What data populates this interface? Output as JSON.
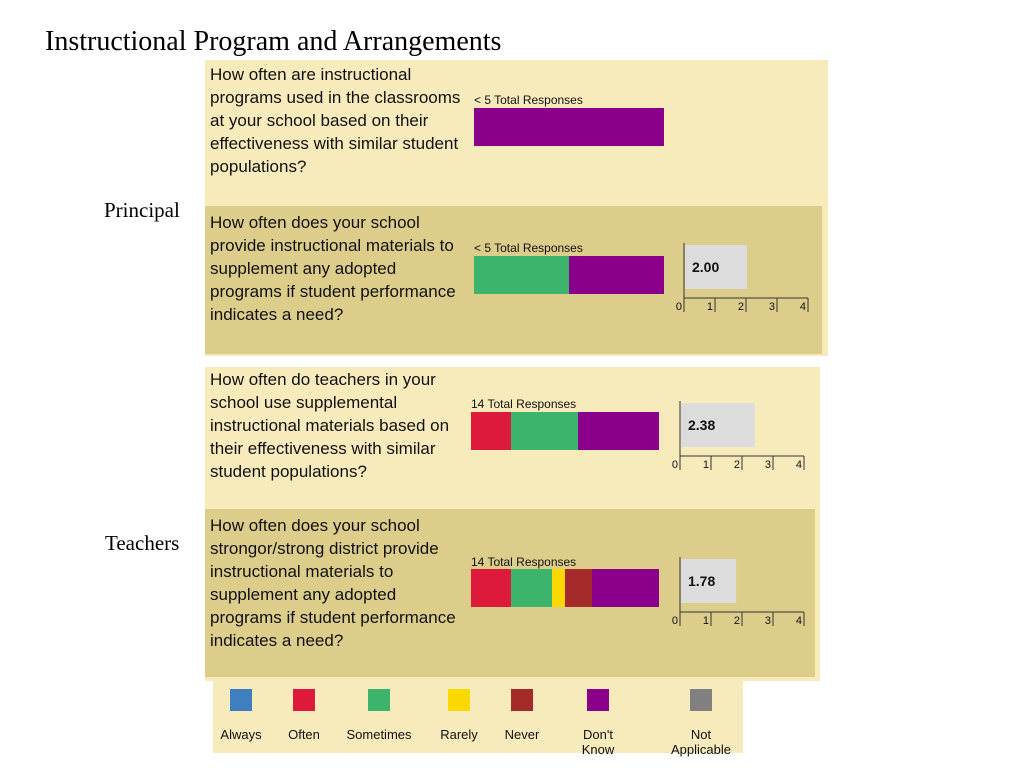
{
  "title": "Instructional Program and Arrangements",
  "colors": {
    "Always": "#3f7fbf",
    "Often": "#dd1a3c",
    "Sometimes": "#3db46b",
    "Rarely": "#fad800",
    "Never": "#a52a2a",
    "Don't Know": "#8b008b",
    "Not Applicable": "#808080",
    "panel_light": "#f7eabb",
    "panel_dark": "#dccd8a"
  },
  "groups": [
    {
      "label": "Principal"
    },
    {
      "label": "Teachers"
    }
  ],
  "chart_data": [
    {
      "type": "bar",
      "group": "Principal",
      "question": "How often are instructional programs used in the classrooms at your school based on their effectiveness with similar student populations?",
      "responses_label": "< 5 Total Responses",
      "series": [
        {
          "name": "Don't Know",
          "values": [
            1.0
          ]
        }
      ],
      "mean": null
    },
    {
      "type": "bar",
      "group": "Principal",
      "question": "How often does your school provide instructional materials to supplement any adopted programs if student performance indicates a need?",
      "responses_label": "< 5 Total Responses",
      "series": [
        {
          "name": "Sometimes",
          "values": [
            0.5
          ]
        },
        {
          "name": "Don't Know",
          "values": [
            0.5
          ]
        }
      ],
      "mean": "2.00",
      "mean_value": 2.0,
      "xlim": [
        0,
        4
      ],
      "ticks": [
        "0",
        "1",
        "2",
        "3",
        "4"
      ]
    },
    {
      "type": "bar",
      "group": "Teachers",
      "question": "How often do teachers in your school use supplemental instructional materials based on their effectiveness with similar student populations?",
      "responses_label": "14 Total Responses",
      "series": [
        {
          "name": "Often",
          "values": [
            0.214
          ]
        },
        {
          "name": "Sometimes",
          "values": [
            0.357
          ]
        },
        {
          "name": "Don't Know",
          "values": [
            0.429
          ]
        }
      ],
      "mean": "2.38",
      "mean_value": 2.38,
      "xlim": [
        0,
        4
      ],
      "ticks": [
        "0",
        "1",
        "2",
        "3",
        "4"
      ]
    },
    {
      "type": "bar",
      "group": "Teachers",
      "question": "How often does your school strongor/strong district provide instructional materials to supplement any adopted programs if student performance indicates a need?",
      "responses_label": "14 Total Responses",
      "series": [
        {
          "name": "Often",
          "values": [
            0.214
          ]
        },
        {
          "name": "Sometimes",
          "values": [
            0.214
          ]
        },
        {
          "name": "Rarely",
          "values": [
            0.071
          ]
        },
        {
          "name": "Never",
          "values": [
            0.143
          ]
        },
        {
          "name": "Don't Know",
          "values": [
            0.357
          ]
        }
      ],
      "mean": "1.78",
      "mean_value": 1.78,
      "xlim": [
        0,
        4
      ],
      "ticks": [
        "0",
        "1",
        "2",
        "3",
        "4"
      ]
    }
  ],
  "legend": [
    {
      "key": "Always",
      "label": "Always"
    },
    {
      "key": "Often",
      "label": "Often"
    },
    {
      "key": "Sometimes",
      "label": "Sometimes"
    },
    {
      "key": "Rarely",
      "label": "Rarely"
    },
    {
      "key": "Never",
      "label": "Never"
    },
    {
      "key": "Don't Know",
      "label": "Don't Know"
    },
    {
      "key": "Not Applicable",
      "label": "Not Applicable"
    }
  ]
}
